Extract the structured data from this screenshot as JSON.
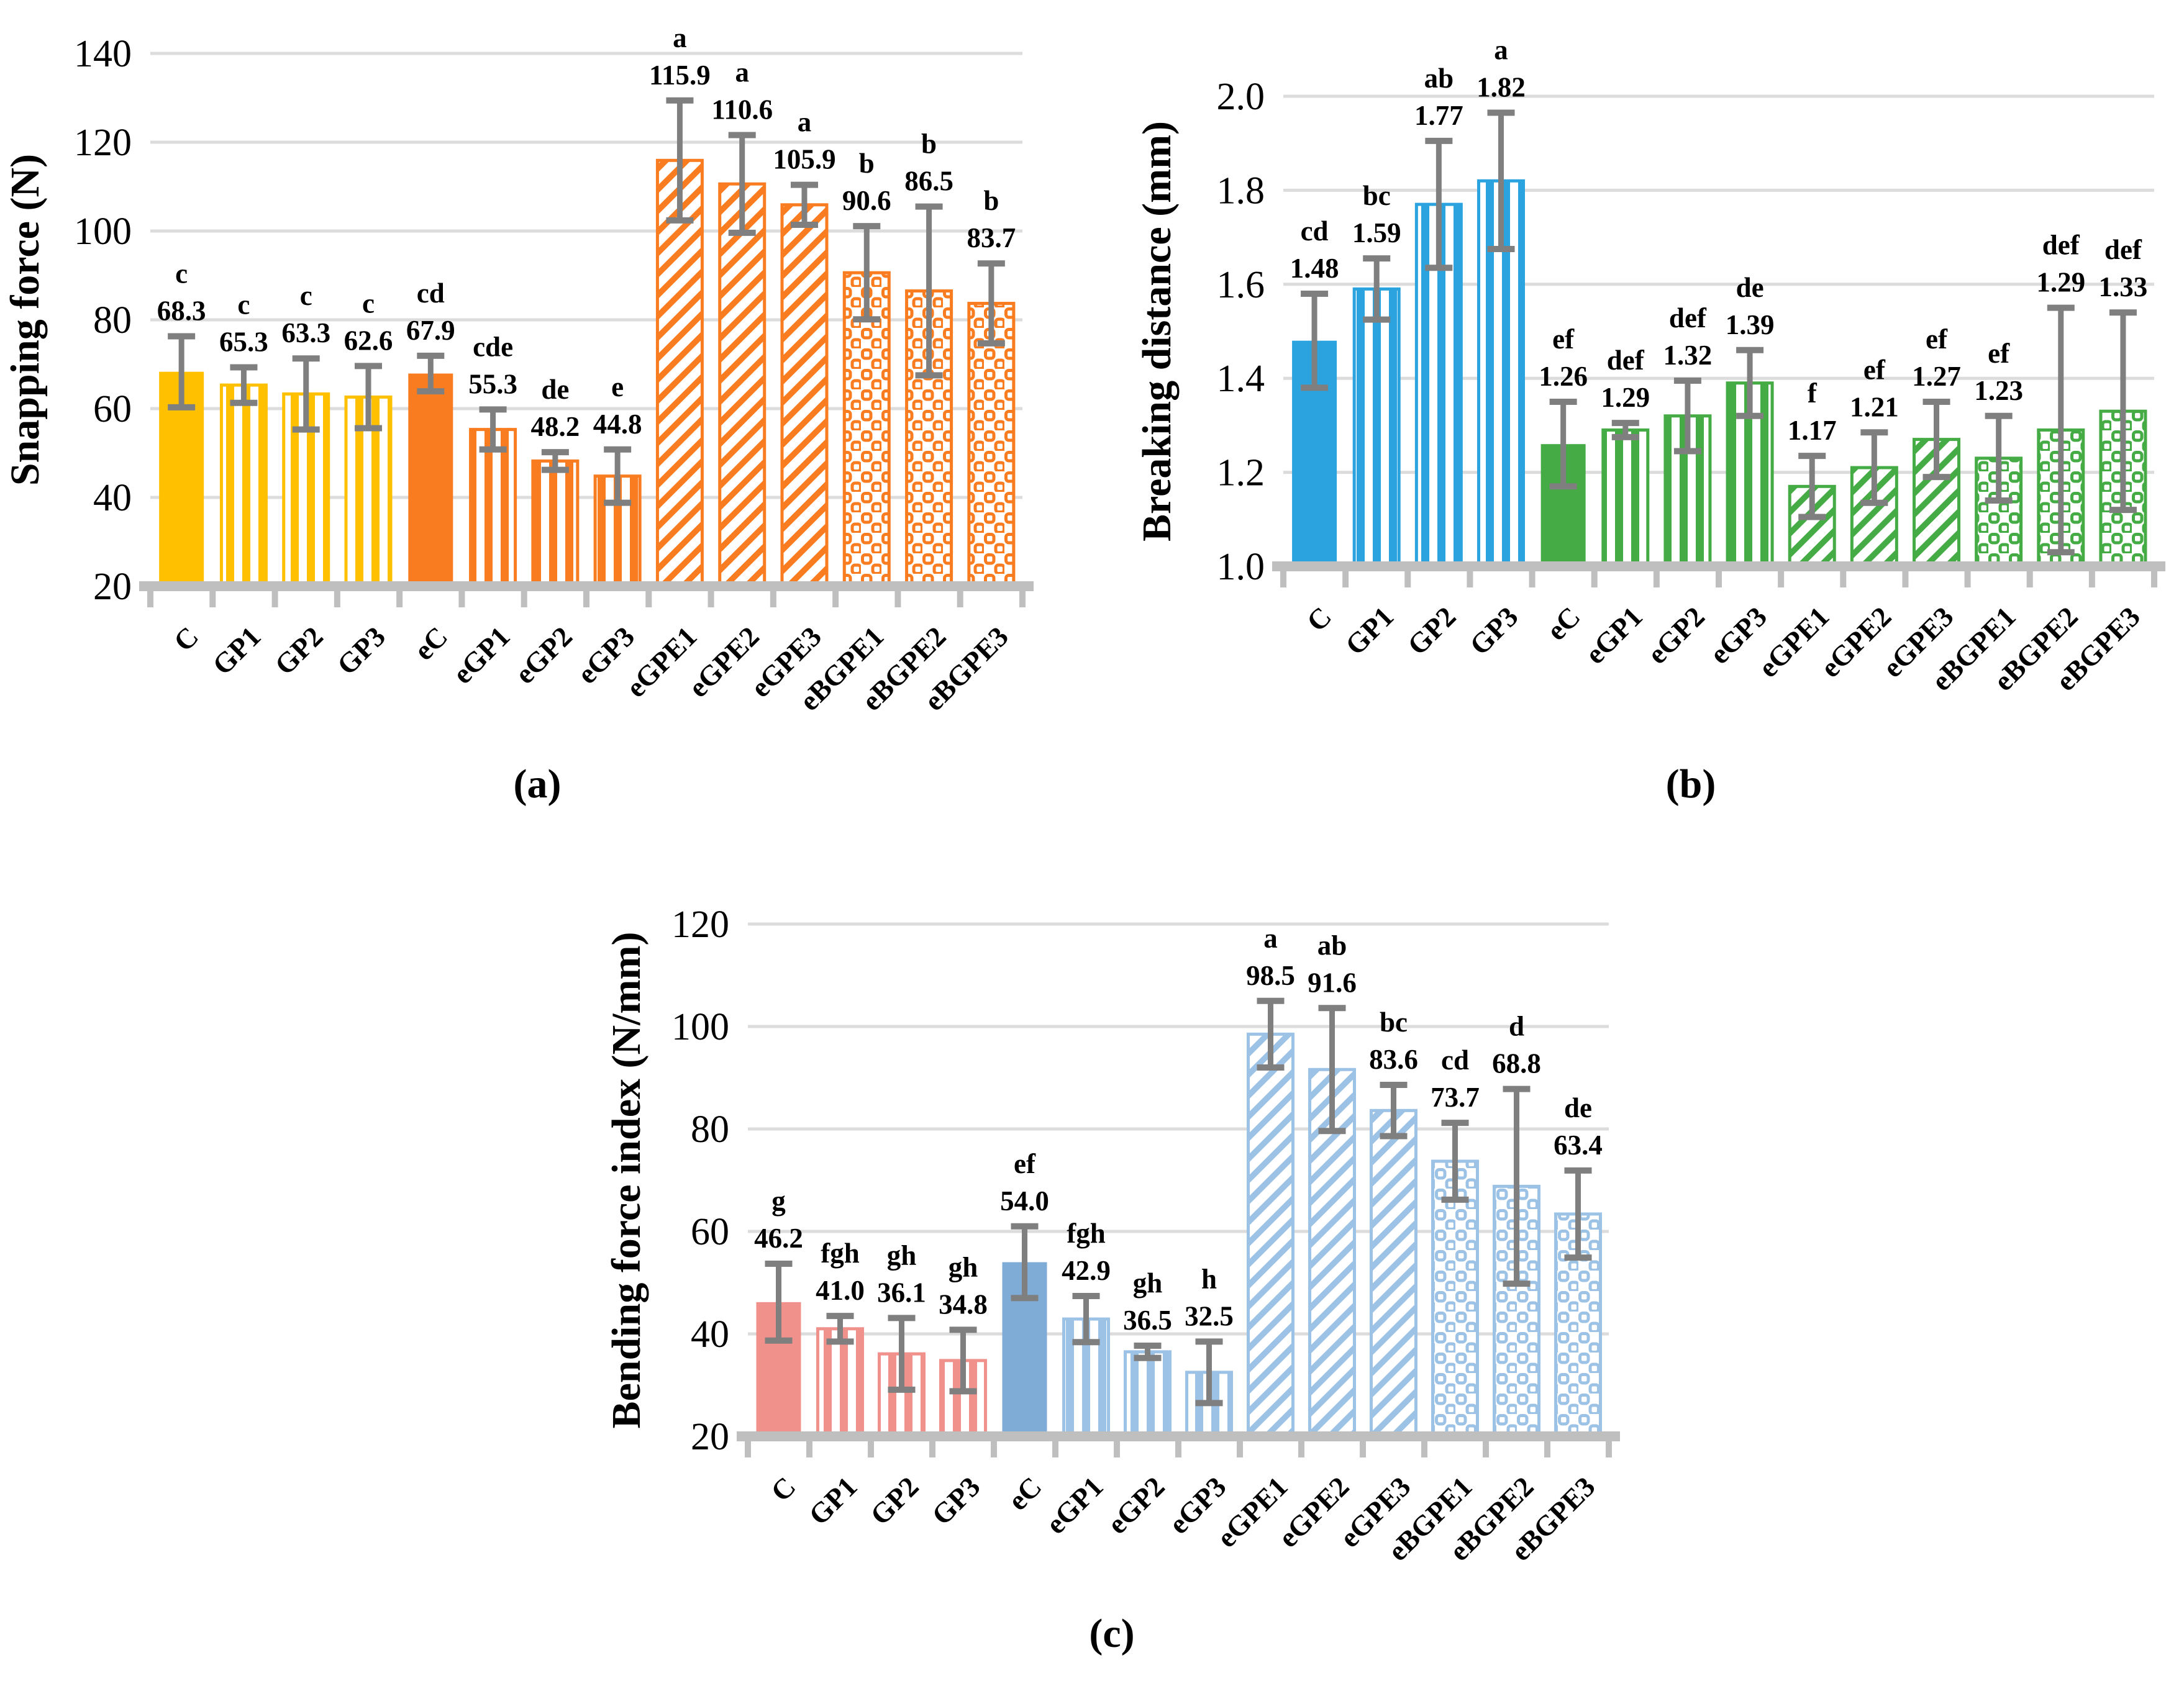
{
  "figure": {
    "panel_labels": [
      "(a)",
      "(b)",
      "(c)"
    ]
  },
  "style": {
    "background": "#FFFFFF",
    "grid_color": "#DCDCDC",
    "axis_band_color": "#BFBFBF",
    "error_bar_color": "#7F7F7F",
    "text_color": "#000000"
  },
  "chart_data": [
    {
      "type": "bar",
      "panel": "a",
      "ylabel": "Snapping force (N)",
      "ylim": [
        20,
        140
      ],
      "ytick_values": [
        140,
        120,
        100,
        80,
        60,
        40,
        20
      ],
      "ytick_labels": [
        "140",
        "120",
        "100",
        "80",
        "60",
        "40",
        "20"
      ],
      "grid": true,
      "legend_position": "none",
      "categories": [
        "C",
        "GP1",
        "GP2",
        "GP3",
        "eC",
        "eGP1",
        "eGP2",
        "eGP3",
        "eGPE1",
        "eGPE2",
        "eGPE3",
        "eBGPE1",
        "eBGPE2",
        "eBGPE3"
      ],
      "values": [
        68.3,
        65.3,
        63.3,
        62.6,
        67.9,
        55.3,
        48.2,
        44.8,
        115.9,
        110.6,
        105.9,
        90.6,
        86.5,
        83.7
      ],
      "value_labels": [
        "68.3",
        "65.3",
        "63.3",
        "62.6",
        "67.9",
        "55.3",
        "48.2",
        "44.8",
        "115.9",
        "110.6",
        "105.9",
        "90.6",
        "86.5",
        "83.7"
      ],
      "errors": [
        8,
        4,
        8,
        7,
        4,
        4.5,
        2,
        6,
        13.5,
        11,
        4.5,
        10.5,
        19,
        9
      ],
      "sig_letters": [
        "c",
        "c",
        "c",
        "c",
        "cd",
        "cde",
        "de",
        "e",
        "a",
        "a",
        "a",
        "b",
        "b",
        "b"
      ],
      "color_groups": [
        "group1",
        "group1",
        "group1",
        "group1",
        "group2",
        "group2",
        "group2",
        "group2",
        "group2",
        "group2",
        "group2",
        "group2",
        "group2",
        "group2"
      ],
      "patterns": [
        "solid",
        "vstripe",
        "vstripe",
        "vstripe",
        "solid",
        "vstripe",
        "vstripe",
        "vstripe",
        "diag",
        "diag",
        "diag",
        "chain",
        "chain",
        "chain"
      ],
      "colors": {
        "group1": "#FFC000",
        "group2": "#F97D20"
      }
    },
    {
      "type": "bar",
      "panel": "b",
      "ylabel": "Breaking distance (mm)",
      "ylim": [
        1.0,
        2.0
      ],
      "ytick_values": [
        2.0,
        1.8,
        1.6,
        1.4,
        1.2,
        1.0
      ],
      "ytick_labels": [
        "2.0",
        "1.8",
        "1.6",
        "1.4",
        "1.2",
        "1.0"
      ],
      "grid": true,
      "legend_position": "none",
      "categories": [
        "C",
        "GP1",
        "GP2",
        "GP3",
        "eC",
        "eGP1",
        "eGP2",
        "eGP3",
        "eGPE1",
        "eGPE2",
        "eGPE3",
        "eBGPE1",
        "eBGPE2",
        "eBGPE3"
      ],
      "values": [
        1.48,
        1.59,
        1.77,
        1.82,
        1.26,
        1.29,
        1.32,
        1.39,
        1.17,
        1.21,
        1.27,
        1.23,
        1.29,
        1.33
      ],
      "value_labels": [
        "1.48",
        "1.59",
        "1.77",
        "1.82",
        "1.26",
        "1.29",
        "1.32",
        "1.39",
        "1.17",
        "1.21",
        "1.27",
        "1.23",
        "1.29",
        "1.33"
      ],
      "errors": [
        0.1,
        0.065,
        0.135,
        0.145,
        0.09,
        0.015,
        0.075,
        0.07,
        0.065,
        0.075,
        0.08,
        0.09,
        0.26,
        0.21
      ],
      "sig_letters": [
        "cd",
        "bc",
        "ab",
        "a",
        "ef",
        "def",
        "def",
        "de",
        "f",
        "ef",
        "ef",
        "ef",
        "def",
        "def"
      ],
      "color_groups": [
        "group1",
        "group1",
        "group1",
        "group1",
        "group2",
        "group2",
        "group2",
        "group2",
        "group2",
        "group2",
        "group2",
        "group2",
        "group2",
        "group2"
      ],
      "patterns": [
        "solid",
        "vstripe",
        "vstripe",
        "vstripe",
        "solid",
        "vstripe",
        "vstripe",
        "vstripe",
        "diag",
        "diag",
        "diag",
        "chain",
        "chain",
        "chain"
      ],
      "colors": {
        "group1": "#2BA3DE",
        "group2": "#45AC45"
      }
    },
    {
      "type": "bar",
      "panel": "c",
      "ylabel": "Bending force index (N/mm)",
      "ylim": [
        20,
        120
      ],
      "ytick_values": [
        120,
        100,
        80,
        60,
        40,
        20
      ],
      "ytick_labels": [
        "120",
        "100",
        "80",
        "60",
        "40",
        "20"
      ],
      "grid": true,
      "legend_position": "none",
      "categories": [
        "C",
        "GP1",
        "GP2",
        "GP3",
        "eC",
        "eGP1",
        "eGP2",
        "eGP3",
        "eGPE1",
        "eGPE2",
        "eGPE3",
        "eBGPE1",
        "eBGPE2",
        "eBGPE3"
      ],
      "values": [
        46.2,
        41.0,
        36.1,
        34.8,
        54.0,
        42.9,
        36.5,
        32.5,
        98.5,
        91.6,
        83.6,
        73.7,
        68.8,
        63.4
      ],
      "value_labels": [
        "46.2",
        "41.0",
        "36.1",
        "34.8",
        "54.0",
        "42.9",
        "36.5",
        "32.5",
        "98.5",
        "91.6",
        "83.6",
        "73.7",
        "68.8",
        "63.4"
      ],
      "errors": [
        7.5,
        2.5,
        7,
        6,
        7,
        4.5,
        1.2,
        6,
        6.5,
        12,
        5,
        7.5,
        19,
        8.5
      ],
      "sig_letters": [
        "g",
        "fgh",
        "gh",
        "gh",
        "ef",
        "fgh",
        "gh",
        "h",
        "a",
        "ab",
        "bc",
        "cd",
        "d",
        "de"
      ],
      "color_groups": [
        "group1",
        "group1",
        "group1",
        "group1",
        "group2",
        "group2",
        "group2",
        "group2",
        "group2",
        "group2",
        "group2",
        "group2",
        "group2",
        "group2"
      ],
      "patterns": [
        "solid",
        "vstripe",
        "vstripe",
        "vstripe",
        "solid",
        "vstripe",
        "vstripe",
        "vstripe",
        "diag",
        "diag",
        "diag",
        "chain",
        "chain",
        "chain"
      ],
      "colors": {
        "group1": "#F0918B",
        "group2": "#7FACD6",
        "group2_pattern": "#9CC2E6"
      }
    }
  ]
}
